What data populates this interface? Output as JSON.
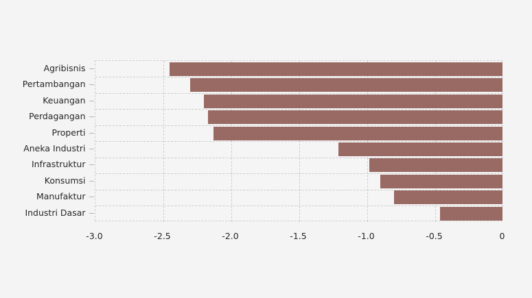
{
  "chart_data": {
    "type": "bar",
    "orientation": "horizontal",
    "title": "",
    "xlabel": "",
    "ylabel": "",
    "categories": [
      "Agribisnis",
      "Pertambangan",
      "Keuangan",
      "Perdagangan",
      "Properti",
      "Aneka Industri",
      "Infrastruktur",
      "Konsumsi",
      "Manufaktur",
      "Industri Dasar"
    ],
    "values": [
      -2.45,
      -2.3,
      -2.2,
      -2.17,
      -2.13,
      -1.21,
      -0.98,
      -0.9,
      -0.8,
      -0.46
    ],
    "xlim": [
      -3.0,
      0
    ],
    "xticks": [
      -3.0,
      -2.5,
      -2.0,
      -1.5,
      -1.0,
      -0.5,
      0
    ],
    "xtick_labels": [
      "-3.0",
      "-2.5",
      "-2.0",
      "-1.5",
      "-1.0",
      "-0.5",
      "0"
    ],
    "grid": true,
    "grid_style": "dashed",
    "legend": false,
    "bar_color": "#996a63",
    "background_color": "#f4f4f4"
  }
}
